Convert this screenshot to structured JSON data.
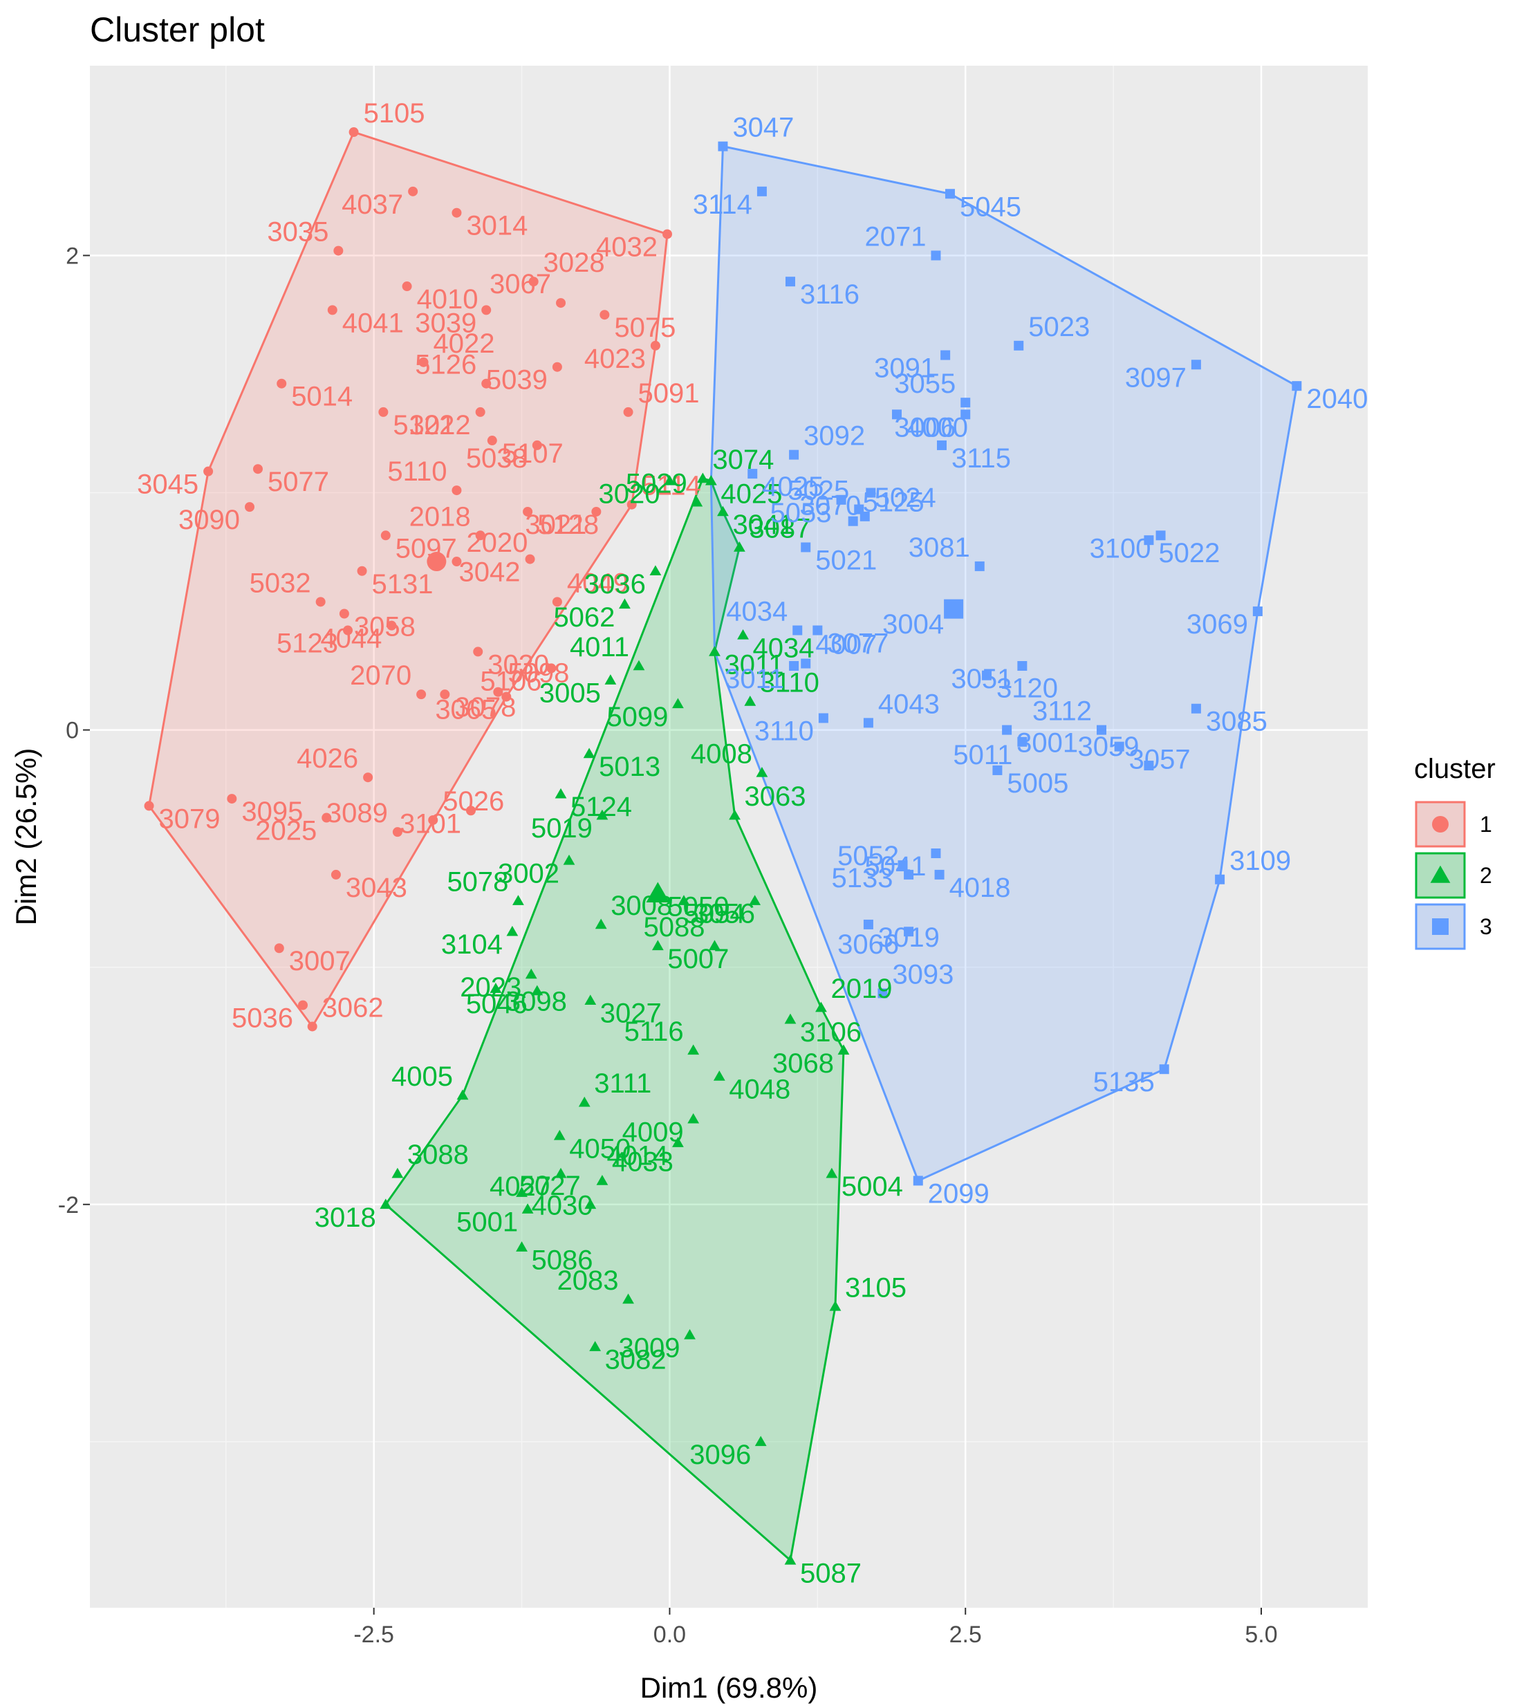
{
  "chart_data": {
    "type": "scatter",
    "title": "Cluster plot",
    "xlabel": "Dim1 (69.8%)",
    "ylabel": "Dim2 (26.5%)",
    "xlim": [
      -4.9,
      5.9
    ],
    "ylim": [
      -3.7,
      2.8
    ],
    "x_ticks": [
      -2.5,
      0.0,
      2.5,
      5.0
    ],
    "x_tick_labels": [
      "-2.5",
      "0.0",
      "2.5",
      "5.0"
    ],
    "y_ticks": [
      -2,
      0,
      2
    ],
    "y_tick_labels": [
      "-2",
      "0",
      "2"
    ],
    "grid": true,
    "legend": {
      "title": "cluster",
      "position": "right",
      "labels": [
        "1",
        "2",
        "3"
      ]
    },
    "colors": {
      "1": "#F8766D",
      "2": "#00BA38",
      "3": "#619CFF"
    },
    "series": [
      {
        "name": "1",
        "shape": "circle",
        "centroid": [
          -1.97,
          0.71
        ],
        "hull": [
          "5105",
          "4032",
          "4023",
          "5114",
          "3065",
          "3062",
          "3079",
          "3045"
        ],
        "points": [
          {
            "id": "5105",
            "x": -2.67,
            "y": 2.52
          },
          {
            "id": "4037",
            "x": -2.17,
            "y": 2.27
          },
          {
            "id": "3014",
            "x": -1.8,
            "y": 2.18
          },
          {
            "id": "3035",
            "x": -2.8,
            "y": 2.02
          },
          {
            "id": "4010",
            "x": -2.22,
            "y": 1.87
          },
          {
            "id": "3039",
            "x": -1.55,
            "y": 1.77
          },
          {
            "id": "3028",
            "x": -1.15,
            "y": 1.89
          },
          {
            "id": "4032",
            "x": -0.02,
            "y": 2.09
          },
          {
            "id": "4041",
            "x": -2.85,
            "y": 1.77
          },
          {
            "id": "3067",
            "x": -0.92,
            "y": 1.8
          },
          {
            "id": "5075",
            "x": -0.55,
            "y": 1.75
          },
          {
            "id": "4023",
            "x": -0.12,
            "y": 1.62
          },
          {
            "id": "4022",
            "x": -2.08,
            "y": 1.55
          },
          {
            "id": "5039",
            "x": -0.95,
            "y": 1.53
          },
          {
            "id": "5014",
            "x": -3.28,
            "y": 1.46
          },
          {
            "id": "5126",
            "x": -1.55,
            "y": 1.46
          },
          {
            "id": "5122",
            "x": -2.42,
            "y": 1.34
          },
          {
            "id": "3012",
            "x": -1.6,
            "y": 1.34
          },
          {
            "id": "5091",
            "x": -0.35,
            "y": 1.34
          },
          {
            "id": "3045",
            "x": -3.9,
            "y": 1.09
          },
          {
            "id": "5077",
            "x": -3.48,
            "y": 1.1
          },
          {
            "id": "5110",
            "x": -1.8,
            "y": 1.01
          },
          {
            "id": "5107",
            "x": -1.5,
            "y": 1.22
          },
          {
            "id": "5038",
            "x": -1.12,
            "y": 1.2
          },
          {
            "id": "5114",
            "x": -0.32,
            "y": 0.95
          },
          {
            "id": "3090",
            "x": -3.55,
            "y": 0.94
          },
          {
            "id": "5097",
            "x": -2.4,
            "y": 0.82
          },
          {
            "id": "2018",
            "x": -1.6,
            "y": 0.82
          },
          {
            "id": "5128",
            "x": -1.2,
            "y": 0.92
          },
          {
            "id": "3021",
            "x": -0.62,
            "y": 0.92
          },
          {
            "id": "2020",
            "x": -1.8,
            "y": 0.71
          },
          {
            "id": "3042",
            "x": -1.18,
            "y": 0.72
          },
          {
            "id": "5131",
            "x": -2.6,
            "y": 0.67
          },
          {
            "id": "5032",
            "x": -2.95,
            "y": 0.54
          },
          {
            "id": "3058",
            "x": -2.75,
            "y": 0.49
          },
          {
            "id": "4044",
            "x": -2.35,
            "y": 0.44
          },
          {
            "id": "4049",
            "x": -0.95,
            "y": 0.54
          },
          {
            "id": "5123",
            "x": -2.72,
            "y": 0.42
          },
          {
            "id": "3030",
            "x": -1.62,
            "y": 0.33
          },
          {
            "id": "2070",
            "x": -2.1,
            "y": 0.15
          },
          {
            "id": "3078",
            "x": -1.9,
            "y": 0.15
          },
          {
            "id": "3065",
            "x": -1.38,
            "y": 0.14
          },
          {
            "id": "5098",
            "x": -1.45,
            "y": 0.16
          },
          {
            "id": "5106",
            "x": -1.0,
            "y": 0.26
          },
          {
            "id": "3095",
            "x": -3.7,
            "y": -0.29
          },
          {
            "id": "4026",
            "x": -2.55,
            "y": -0.2
          },
          {
            "id": "3079",
            "x": -4.4,
            "y": -0.32
          },
          {
            "id": "2025",
            "x": -2.9,
            "y": -0.37
          },
          {
            "id": "5026",
            "x": -2.0,
            "y": -0.38
          },
          {
            "id": "3101",
            "x": -1.68,
            "y": -0.34
          },
          {
            "id": "3043",
            "x": -2.82,
            "y": -0.61
          },
          {
            "id": "3089",
            "x": -2.3,
            "y": -0.43
          },
          {
            "id": "3007",
            "x": -3.3,
            "y": -0.92
          },
          {
            "id": "5036",
            "x": -3.1,
            "y": -1.16
          },
          {
            "id": "3062",
            "x": -3.02,
            "y": -1.25
          }
        ]
      },
      {
        "name": "2",
        "shape": "triangle",
        "centroid": [
          -0.1,
          -0.69
        ],
        "hull": [
          "3074",
          "4025",
          "3041",
          "3087",
          "3011",
          "3063",
          "3054",
          "2019",
          "3068",
          "3105",
          "5087",
          "3018",
          "4005"
        ],
        "points": [
          {
            "id": "3074",
            "x": 0.28,
            "y": 1.06
          },
          {
            "id": "3020",
            "x": 0.0,
            "y": 1.05
          },
          {
            "id": "4025",
            "x": 0.35,
            "y": 1.05
          },
          {
            "id": "5029",
            "x": 0.23,
            "y": 0.96
          },
          {
            "id": "3041",
            "x": 0.45,
            "y": 0.92
          },
          {
            "id": "3036",
            "x": -0.12,
            "y": 0.67
          },
          {
            "id": "3087",
            "x": 0.59,
            "y": 0.77
          },
          {
            "id": "5062",
            "x": -0.38,
            "y": 0.53
          },
          {
            "id": "4034",
            "x": 0.62,
            "y": 0.4
          },
          {
            "id": "4011",
            "x": -0.26,
            "y": 0.27
          },
          {
            "id": "3011",
            "x": 0.38,
            "y": 0.33
          },
          {
            "id": "3005",
            "x": -0.5,
            "y": 0.21
          },
          {
            "id": "3110",
            "x": 0.68,
            "y": 0.12
          },
          {
            "id": "5099",
            "x": 0.07,
            "y": 0.11
          },
          {
            "id": "5013",
            "x": -0.68,
            "y": -0.1
          },
          {
            "id": "4008",
            "x": 0.78,
            "y": -0.18
          },
          {
            "id": "5124",
            "x": -0.92,
            "y": -0.27
          },
          {
            "id": "5019",
            "x": -0.57,
            "y": -0.36
          },
          {
            "id": "3063",
            "x": 0.55,
            "y": -0.36
          },
          {
            "id": "3002",
            "x": -0.85,
            "y": -0.55
          },
          {
            "id": "5050",
            "x": -0.1,
            "y": -0.69
          },
          {
            "id": "5078",
            "x": -1.28,
            "y": -0.72
          },
          {
            "id": "3056",
            "x": 0.12,
            "y": -0.72
          },
          {
            "id": "3104",
            "x": -1.33,
            "y": -0.85
          },
          {
            "id": "3008",
            "x": -0.58,
            "y": -0.82
          },
          {
            "id": "5054",
            "x": 0.72,
            "y": -0.72
          },
          {
            "id": "5007",
            "x": -0.1,
            "y": -0.91
          },
          {
            "id": "5088",
            "x": 0.38,
            "y": -0.91
          },
          {
            "id": "3098",
            "x": -1.47,
            "y": -1.09
          },
          {
            "id": "5046",
            "x": -1.12,
            "y": -1.1
          },
          {
            "id": "2019",
            "x": 1.28,
            "y": -1.17
          },
          {
            "id": "2023",
            "x": -1.17,
            "y": -1.03
          },
          {
            "id": "3027",
            "x": -0.67,
            "y": -1.14
          },
          {
            "id": "5116",
            "x": 0.2,
            "y": -1.35
          },
          {
            "id": "3106",
            "x": 1.02,
            "y": -1.22
          },
          {
            "id": "3068",
            "x": 1.47,
            "y": -1.35
          },
          {
            "id": "3111",
            "x": -0.72,
            "y": -1.57
          },
          {
            "id": "4009",
            "x": 0.2,
            "y": -1.64
          },
          {
            "id": "4048",
            "x": 0.42,
            "y": -1.46
          },
          {
            "id": "4005",
            "x": -1.75,
            "y": -1.54
          },
          {
            "id": "4050",
            "x": -0.93,
            "y": -1.71
          },
          {
            "id": "4014",
            "x": 0.07,
            "y": -1.74
          },
          {
            "id": "3088",
            "x": -2.3,
            "y": -1.87
          },
          {
            "id": "4027",
            "x": -0.92,
            "y": -1.87
          },
          {
            "id": "5004",
            "x": 1.37,
            "y": -1.87
          },
          {
            "id": "5027",
            "x": -0.67,
            "y": -2.0
          },
          {
            "id": "4030",
            "x": -1.25,
            "y": -1.95
          },
          {
            "id": "5001",
            "x": -1.2,
            "y": -2.02
          },
          {
            "id": "4033",
            "x": -0.57,
            "y": -1.9
          },
          {
            "id": "3018",
            "x": -2.4,
            "y": -2.0
          },
          {
            "id": "5086",
            "x": -1.25,
            "y": -2.18
          },
          {
            "id": "2083",
            "x": -0.35,
            "y": -2.4
          },
          {
            "id": "3082",
            "x": -0.63,
            "y": -2.6
          },
          {
            "id": "3009",
            "x": 0.17,
            "y": -2.55
          },
          {
            "id": "3105",
            "x": 1.4,
            "y": -2.43
          },
          {
            "id": "3096",
            "x": 0.77,
            "y": -3.0
          },
          {
            "id": "5087",
            "x": 1.02,
            "y": -3.5
          }
        ]
      },
      {
        "name": "3",
        "shape": "square",
        "centroid": [
          2.4,
          0.51
        ],
        "hull": [
          "3047",
          "5045",
          "2040",
          "3069",
          "3109",
          "5135",
          "2099",
          "3011",
          "4025"
        ],
        "points": [
          {
            "id": "3047",
            "x": 0.45,
            "y": 2.46
          },
          {
            "id": "3114",
            "x": 0.78,
            "y": 2.27
          },
          {
            "id": "5045",
            "x": 2.37,
            "y": 2.26
          },
          {
            "id": "2071",
            "x": 2.25,
            "y": 2.0
          },
          {
            "id": "3116",
            "x": 1.02,
            "y": 1.89
          },
          {
            "id": "3091",
            "x": 2.33,
            "y": 1.58
          },
          {
            "id": "5023",
            "x": 2.95,
            "y": 1.62
          },
          {
            "id": "3097",
            "x": 4.45,
            "y": 1.54
          },
          {
            "id": "2040",
            "x": 5.3,
            "y": 1.45
          },
          {
            "id": "3055",
            "x": 2.5,
            "y": 1.38
          },
          {
            "id": "4000",
            "x": 1.92,
            "y": 1.33
          },
          {
            "id": "3006",
            "x": 2.5,
            "y": 1.33
          },
          {
            "id": "3092",
            "x": 1.05,
            "y": 1.16
          },
          {
            "id": "3070",
            "x": 1.7,
            "y": 1.0
          },
          {
            "id": "3115",
            "x": 2.3,
            "y": 1.2
          },
          {
            "id": "5025",
            "x": 1.6,
            "y": 0.93
          },
          {
            "id": "4025b",
            "x": 0.7,
            "y": 1.08
          },
          {
            "id": "5053",
            "x": 1.45,
            "y": 0.97
          },
          {
            "id": "5024",
            "x": 1.65,
            "y": 0.9
          },
          {
            "id": "3100",
            "x": 4.15,
            "y": 0.82
          },
          {
            "id": "5022",
            "x": 4.05,
            "y": 0.8
          },
          {
            "id": "3081",
            "x": 2.62,
            "y": 0.69
          },
          {
            "id": "5021",
            "x": 1.15,
            "y": 0.77
          },
          {
            "id": "3069",
            "x": 4.97,
            "y": 0.5
          },
          {
            "id": "5125",
            "x": 1.55,
            "y": 0.88
          },
          {
            "id": "3004",
            "x": 2.4,
            "y": 0.5
          },
          {
            "id": "3077",
            "x": 1.25,
            "y": 0.42
          },
          {
            "id": "4034b",
            "x": 1.08,
            "y": 0.42
          },
          {
            "id": "3120",
            "x": 2.68,
            "y": 0.23
          },
          {
            "id": "3051",
            "x": 2.98,
            "y": 0.27
          },
          {
            "id": "4007",
            "x": 1.15,
            "y": 0.28
          },
          {
            "id": "3011b",
            "x": 1.05,
            "y": 0.27
          },
          {
            "id": "3001",
            "x": 2.85,
            "y": 0.0
          },
          {
            "id": "3112",
            "x": 3.65,
            "y": 0.0
          },
          {
            "id": "3085",
            "x": 4.45,
            "y": 0.09
          },
          {
            "id": "3110b",
            "x": 1.3,
            "y": 0.05
          },
          {
            "id": "4043",
            "x": 1.68,
            "y": 0.03
          },
          {
            "id": "5011",
            "x": 2.98,
            "y": -0.05
          },
          {
            "id": "3057",
            "x": 3.8,
            "y": -0.07
          },
          {
            "id": "3059",
            "x": 4.05,
            "y": -0.15
          },
          {
            "id": "5005",
            "x": 2.77,
            "y": -0.17
          },
          {
            "id": "5041",
            "x": 2.25,
            "y": -0.52
          },
          {
            "id": "3109",
            "x": 4.65,
            "y": -0.63
          },
          {
            "id": "5133",
            "x": 1.97,
            "y": -0.57
          },
          {
            "id": "4018",
            "x": 2.28,
            "y": -0.61
          },
          {
            "id": "5052",
            "x": 2.02,
            "y": -0.61
          },
          {
            "id": "3019",
            "x": 1.68,
            "y": -0.82
          },
          {
            "id": "3066",
            "x": 2.02,
            "y": -0.85
          },
          {
            "id": "3093",
            "x": 1.8,
            "y": -1.11
          },
          {
            "id": "5135",
            "x": 4.18,
            "y": -1.43
          },
          {
            "id": "2099",
            "x": 2.1,
            "y": -1.9
          }
        ]
      }
    ]
  }
}
